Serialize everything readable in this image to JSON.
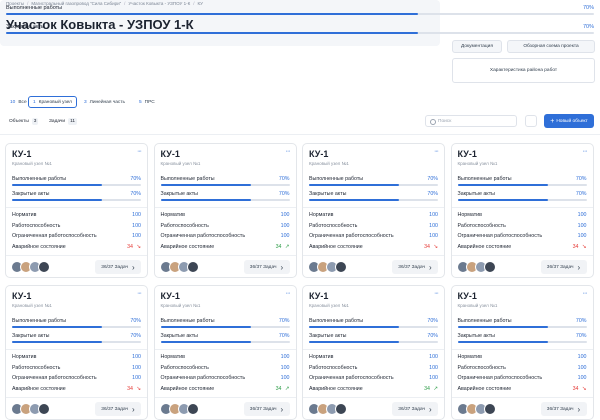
{
  "breadcrumb": [
    "Проекты",
    "Магистральный газопровод “Сила Сибири”",
    "Участок Ковыкта - УЗПОУ 1-К",
    "КУ"
  ],
  "header": {
    "title": "Участок Ковыкта - УЗПОУ 1-К"
  },
  "summary": {
    "rows": [
      {
        "label": "Выполненные работы",
        "percent": 70,
        "percent_label": "70%"
      },
      {
        "label": "Закрытые акты",
        "percent": 70,
        "percent_label": "70%"
      }
    ]
  },
  "links": [
    "Документация",
    "Обзорная схема проекта",
    "Характеристика района работ"
  ],
  "tabs": [
    {
      "count": 10,
      "label": "Все",
      "active": false
    },
    {
      "count": 1,
      "label": "Крановый узел",
      "active": true
    },
    {
      "count": 3,
      "label": "Линейная часть",
      "active": false
    },
    {
      "count": 5,
      "label": "ПРС",
      "active": false
    }
  ],
  "filters": [
    {
      "label": "Объекты",
      "count": 3
    },
    {
      "label": "Задачи",
      "count": 11
    }
  ],
  "search_placeholder": "Поиск",
  "new_button": "Новый объект",
  "cards": [
    {
      "title": "КУ-1",
      "subtitle": "Крановый узел №1",
      "progress": [
        {
          "label": "Выполненные работы",
          "percent": 70,
          "percent_label": "70%"
        },
        {
          "label": "Закрытые акты",
          "percent": 70,
          "percent_label": "70%"
        }
      ],
      "metrics": [
        {
          "label": "Норматив",
          "value": 100
        },
        {
          "label": "Работоспособность",
          "value": 100
        },
        {
          "label": "Ограниченная работоспособность",
          "value": 100
        },
        {
          "label": "Аварийное состояние",
          "value": 34,
          "color": "#e53935"
        }
      ],
      "tasks": "36/37 Задач"
    },
    {
      "title": "КУ-1",
      "subtitle": "Крановый узел №1",
      "progress": [
        {
          "label": "Выполненные работы",
          "percent": 70,
          "percent_label": "70%"
        },
        {
          "label": "Закрытые акты",
          "percent": 70,
          "percent_label": "70%"
        }
      ],
      "metrics": [
        {
          "label": "Норматив",
          "value": 100
        },
        {
          "label": "Работоспособность",
          "value": 100
        },
        {
          "label": "Ограниченная работоспособность",
          "value": 100
        },
        {
          "label": "Аварийное состояние",
          "value": 34,
          "color": "#2e9d48"
        }
      ],
      "tasks": "36/37 Задач"
    },
    {
      "title": "КУ-1",
      "subtitle": "Крановый узел №1",
      "progress": [
        {
          "label": "Выполненные работы",
          "percent": 70,
          "percent_label": "70%"
        },
        {
          "label": "Закрытые акты",
          "percent": 70,
          "percent_label": "70%"
        }
      ],
      "metrics": [
        {
          "label": "Норматив",
          "value": 100
        },
        {
          "label": "Работоспособность",
          "value": 100
        },
        {
          "label": "Ограниченная работоспособность",
          "value": 100
        },
        {
          "label": "Аварийное состояние",
          "value": 34,
          "color": "#e53935"
        }
      ],
      "tasks": "36/37 Задач"
    },
    {
      "title": "КУ-1",
      "subtitle": "Крановый узел №1",
      "progress": [
        {
          "label": "Выполненные работы",
          "percent": 70,
          "percent_label": "70%"
        },
        {
          "label": "Закрытые акты",
          "percent": 70,
          "percent_label": "70%"
        }
      ],
      "metrics": [
        {
          "label": "Норматив",
          "value": 100
        },
        {
          "label": "Работоспособность",
          "value": 100
        },
        {
          "label": "Ограниченная работоспособность",
          "value": 100
        },
        {
          "label": "Аварийное состояние",
          "value": 34,
          "color": "#e53935"
        }
      ],
      "tasks": "36/37 Задач"
    },
    {
      "title": "КУ-1",
      "subtitle": "Крановый узел №1",
      "progress": [
        {
          "label": "Выполненные работы",
          "percent": 70,
          "percent_label": "70%"
        },
        {
          "label": "Закрытые акты",
          "percent": 70,
          "percent_label": "70%"
        }
      ],
      "metrics": [
        {
          "label": "Норматив",
          "value": 100
        },
        {
          "label": "Работоспособность",
          "value": 100
        },
        {
          "label": "Ограниченная работоспособность",
          "value": 100
        },
        {
          "label": "Аварийное состояние",
          "value": 34,
          "color": "#e53935"
        }
      ],
      "tasks": "36/37 Задач"
    },
    {
      "title": "КУ-1",
      "subtitle": "Крановый узел №1",
      "progress": [
        {
          "label": "Выполненные работы",
          "percent": 70,
          "percent_label": "70%"
        },
        {
          "label": "Закрытые акты",
          "percent": 70,
          "percent_label": "70%"
        }
      ],
      "metrics": [
        {
          "label": "Норматив",
          "value": 100
        },
        {
          "label": "Работоспособность",
          "value": 100
        },
        {
          "label": "Ограниченная работоспособность",
          "value": 100
        },
        {
          "label": "Аварийное состояние",
          "value": 34,
          "color": "#2e9d48"
        }
      ],
      "tasks": "36/37 Задач"
    },
    {
      "title": "КУ-1",
      "subtitle": "Крановый узел №1",
      "progress": [
        {
          "label": "Выполненные работы",
          "percent": 70,
          "percent_label": "70%"
        },
        {
          "label": "Закрытые акты",
          "percent": 70,
          "percent_label": "70%"
        }
      ],
      "metrics": [
        {
          "label": "Норматив",
          "value": 100
        },
        {
          "label": "Работоспособность",
          "value": 100
        },
        {
          "label": "Ограниченная работоспособность",
          "value": 100
        },
        {
          "label": "Аварийное состояние",
          "value": 34,
          "color": "#2e9d48"
        }
      ],
      "tasks": "36/37 Задач"
    },
    {
      "title": "КУ-1",
      "subtitle": "Крановый узел №1",
      "progress": [
        {
          "label": "Выполненные работы",
          "percent": 70,
          "percent_label": "70%"
        },
        {
          "label": "Закрытые акты",
          "percent": 70,
          "percent_label": "70%"
        }
      ],
      "metrics": [
        {
          "label": "Норматив",
          "value": 100
        },
        {
          "label": "Работоспособность",
          "value": 100
        },
        {
          "label": "Ограниченная работоспособность",
          "value": 100
        },
        {
          "label": "Аварийное состояние",
          "value": 34,
          "color": "#e53935"
        }
      ],
      "tasks": "36/37 Задач"
    }
  ]
}
